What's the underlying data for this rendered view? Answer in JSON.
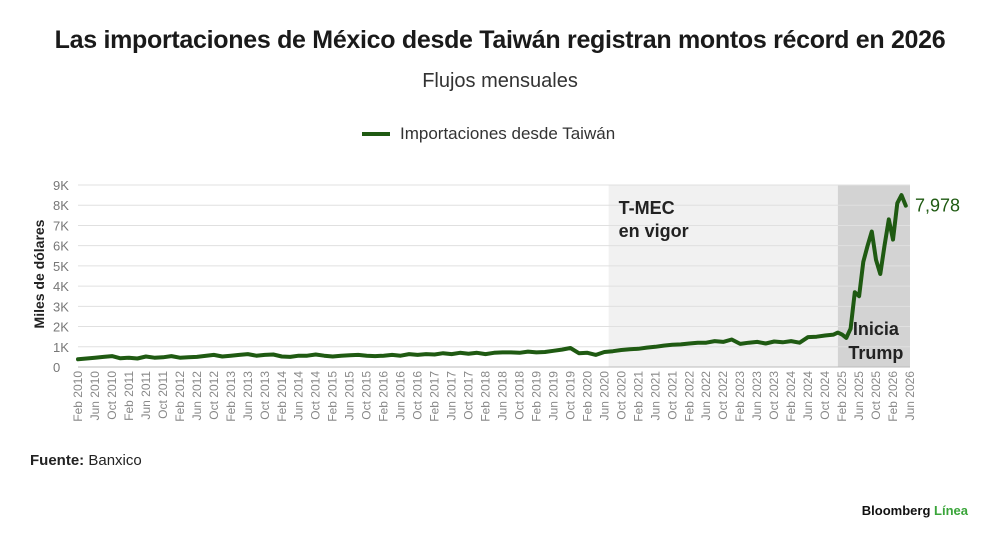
{
  "header": {
    "title": "Las importaciones de México desde Taiwán registran montos récord en 2026",
    "subtitle": "Flujos mensuales"
  },
  "footer": {
    "source_label": "Fuente:",
    "source_value": "Banxico",
    "brand_main": "Bloomberg",
    "brand_accent": "Línea"
  },
  "colors": {
    "line": "#1f5a12",
    "shade_light": "#f1f1f1",
    "shade_dark": "#d3d3d3",
    "grid": "#e0e0e0"
  },
  "chart_data": {
    "type": "line",
    "ylabel": "Miles de dólares",
    "ylim": [
      0,
      9000
    ],
    "y_ticks": [
      0,
      1000,
      2000,
      3000,
      4000,
      5000,
      6000,
      7000,
      8000,
      9000
    ],
    "y_tick_labels": [
      "0",
      "1K",
      "2K",
      "3K",
      "4K",
      "5K",
      "6K",
      "7K",
      "8K",
      "9K"
    ],
    "x_tick_labels": [
      "Feb 2010",
      "Jun 2010",
      "Oct 2010",
      "Feb 2011",
      "Jun 2011",
      "Oct 2011",
      "Feb 2012",
      "Jun 2012",
      "Oct 2012",
      "Feb 2013",
      "Jun 2013",
      "Oct 2013",
      "Feb 2014",
      "Jun 2014",
      "Oct 2014",
      "Feb 2015",
      "Jun 2015",
      "Oct 2015",
      "Feb 2016",
      "Jun 2016",
      "Oct 2016",
      "Feb 2017",
      "Jun 2017",
      "Oct 2017",
      "Feb 2018",
      "Jun 2018",
      "Oct 2018",
      "Feb 2019",
      "Jun 2019",
      "Oct 2019",
      "Feb 2020",
      "Jun 2020",
      "Oct 2020",
      "Feb 2021",
      "Jun 2021",
      "Oct 2021",
      "Feb 2022",
      "Jun 2022",
      "Oct 2022",
      "Feb 2023",
      "Jun 2023",
      "Oct 2023",
      "Feb 2024",
      "Jun 2024",
      "Oct 2024",
      "Feb 2025",
      "Jun 2025",
      "Oct 2025",
      "Feb 2026",
      "Jun 2026"
    ],
    "grid": "horizontal",
    "legend_position": "top",
    "series": [
      {
        "name": "Importaciones desde Taiwán",
        "x": [
          "2010-02",
          "2010-04",
          "2010-06",
          "2010-08",
          "2010-10",
          "2010-12",
          "2011-02",
          "2011-04",
          "2011-06",
          "2011-08",
          "2011-10",
          "2011-12",
          "2012-02",
          "2012-04",
          "2012-06",
          "2012-08",
          "2012-10",
          "2012-12",
          "2013-02",
          "2013-04",
          "2013-06",
          "2013-08",
          "2013-10",
          "2013-12",
          "2014-02",
          "2014-04",
          "2014-06",
          "2014-08",
          "2014-10",
          "2014-12",
          "2015-02",
          "2015-04",
          "2015-06",
          "2015-08",
          "2015-10",
          "2015-12",
          "2016-02",
          "2016-04",
          "2016-06",
          "2016-08",
          "2016-10",
          "2016-12",
          "2017-02",
          "2017-04",
          "2017-06",
          "2017-08",
          "2017-10",
          "2017-12",
          "2018-02",
          "2018-04",
          "2018-06",
          "2018-08",
          "2018-10",
          "2018-12",
          "2019-02",
          "2019-04",
          "2019-06",
          "2019-08",
          "2019-10",
          "2019-12",
          "2020-02",
          "2020-04",
          "2020-06",
          "2020-08",
          "2020-10",
          "2020-12",
          "2021-02",
          "2021-04",
          "2021-06",
          "2021-08",
          "2021-10",
          "2021-12",
          "2022-02",
          "2022-04",
          "2022-06",
          "2022-08",
          "2022-10",
          "2022-12",
          "2023-02",
          "2023-04",
          "2023-06",
          "2023-08",
          "2023-10",
          "2023-12",
          "2024-02",
          "2024-04",
          "2024-06",
          "2024-08",
          "2024-10",
          "2024-12",
          "2025-01",
          "2025-02",
          "2025-03",
          "2025-04",
          "2025-05",
          "2025-06",
          "2025-07",
          "2025-08",
          "2025-09",
          "2025-10",
          "2025-11",
          "2025-12",
          "2026-01",
          "2026-02",
          "2026-03",
          "2026-04",
          "2026-05"
        ],
        "values": [
          380,
          420,
          460,
          500,
          540,
          430,
          460,
          420,
          520,
          460,
          480,
          540,
          460,
          480,
          500,
          550,
          600,
          520,
          560,
          600,
          640,
          560,
          600,
          620,
          520,
          500,
          560,
          560,
          620,
          560,
          520,
          560,
          580,
          600,
          560,
          540,
          560,
          600,
          560,
          640,
          600,
          640,
          620,
          680,
          640,
          700,
          660,
          700,
          640,
          700,
          720,
          720,
          700,
          760,
          720,
          740,
          800,
          860,
          940,
          680,
          700,
          600,
          740,
          780,
          840,
          880,
          900,
          960,
          1000,
          1060,
          1100,
          1120,
          1160,
          1200,
          1200,
          1280,
          1240,
          1360,
          1140,
          1200,
          1240,
          1160,
          1260,
          1220,
          1280,
          1200,
          1480,
          1500,
          1560,
          1600,
          1700,
          1600,
          1440,
          1900,
          3700,
          3500,
          5200,
          6000,
          6700,
          5300,
          4600,
          6000,
          7300,
          6300,
          8100,
          8500,
          7978
        ]
      }
    ],
    "last_value_label": "7,978",
    "annotations": [
      {
        "text_lines": [
          "T-MEC",
          "en vigor"
        ],
        "x_start": "2020-07",
        "x_end": "2024-12"
      },
      {
        "text_lines": [
          "Inicia",
          "Trump"
        ],
        "x_start": "2025-01",
        "x_end": "2026-05"
      }
    ]
  }
}
